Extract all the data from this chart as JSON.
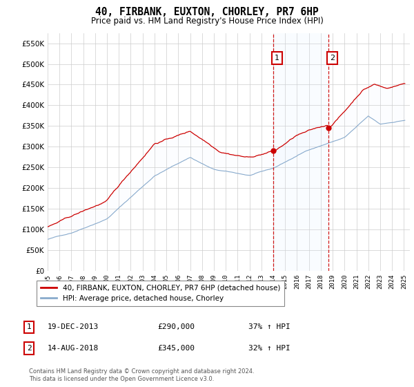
{
  "title": "40, FIRBANK, EUXTON, CHORLEY, PR7 6HP",
  "subtitle": "Price paid vs. HM Land Registry's House Price Index (HPI)",
  "legend_line1": "40, FIRBANK, EUXTON, CHORLEY, PR7 6HP (detached house)",
  "legend_line2": "HPI: Average price, detached house, Chorley",
  "note": "Contains HM Land Registry data © Crown copyright and database right 2024.\nThis data is licensed under the Open Government Licence v3.0.",
  "annotation1_date": "19-DEC-2013",
  "annotation1_price": "£290,000",
  "annotation1_hpi": "37% ↑ HPI",
  "annotation2_date": "14-AUG-2018",
  "annotation2_price": "£345,000",
  "annotation2_hpi": "32% ↑ HPI",
  "sale1_year": 2013.97,
  "sale1_value": 290000,
  "sale2_year": 2018.62,
  "sale2_value": 345000,
  "red_line_color": "#cc0000",
  "blue_line_color": "#88aacc",
  "shade_color": "#ddeeff",
  "grid_color": "#cccccc",
  "background_color": "#ffffff",
  "ann_box_color": "#cc0000",
  "ylim": [
    0,
    575000
  ],
  "xlim_start": 1995,
  "xlim_end": 2025.5,
  "yticks": [
    0,
    50000,
    100000,
    150000,
    200000,
    250000,
    300000,
    350000,
    400000,
    450000,
    500000,
    550000
  ]
}
